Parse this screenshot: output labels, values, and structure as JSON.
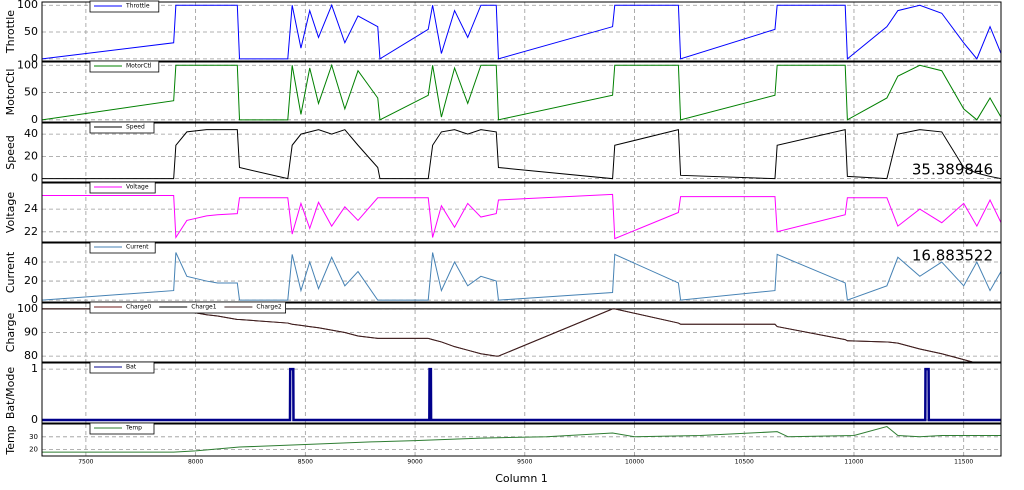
{
  "chart_data": [
    {
      "type": "line",
      "ylabel": "Throttle",
      "xlim": [
        7300,
        11670
      ],
      "xticks": [
        7500,
        8000,
        8500,
        9000,
        9500,
        10000,
        10500,
        11000,
        11500
      ],
      "ylim": [
        -4,
        106
      ],
      "yticks": [
        0,
        50,
        100
      ],
      "grid": true,
      "x": [
        7300,
        7900,
        7910,
        7960,
        8050,
        8100,
        8190,
        8200,
        8420,
        8440,
        8480,
        8520,
        8560,
        8620,
        8680,
        8740,
        8830,
        8840,
        9060,
        9080,
        9120,
        9180,
        9240,
        9300,
        9370,
        9380,
        9900,
        9910,
        10200,
        10210,
        10640,
        10650,
        10960,
        10970,
        11150,
        11200,
        11300,
        11400,
        11500,
        11560,
        11620,
        11670
      ],
      "series": [
        {
          "name": "Throttle",
          "color": "#0000ff",
          "values": [
            0,
            30,
            100,
            100,
            100,
            100,
            100,
            0,
            0,
            100,
            20,
            90,
            40,
            100,
            30,
            80,
            60,
            0,
            55,
            100,
            10,
            90,
            40,
            100,
            100,
            0,
            60,
            100,
            100,
            0,
            55,
            100,
            100,
            0,
            60,
            90,
            100,
            85,
            30,
            0,
            60,
            10
          ]
        }
      ]
    },
    {
      "type": "line",
      "ylabel": "MotorCtl",
      "xlim": [
        7300,
        11670
      ],
      "xticks": [
        7500,
        8000,
        8500,
        9000,
        9500,
        10000,
        10500,
        11000,
        11500
      ],
      "ylim": [
        -4,
        106
      ],
      "yticks": [
        0,
        50,
        100
      ],
      "grid": true,
      "x": [
        7300,
        7900,
        7910,
        7960,
        8050,
        8100,
        8190,
        8200,
        8420,
        8440,
        8480,
        8520,
        8560,
        8620,
        8680,
        8740,
        8830,
        8840,
        9060,
        9080,
        9120,
        9180,
        9240,
        9300,
        9370,
        9380,
        9900,
        9910,
        10200,
        10210,
        10640,
        10650,
        10960,
        10970,
        11150,
        11200,
        11300,
        11400,
        11500,
        11560,
        11620,
        11670
      ],
      "series": [
        {
          "name": "MotorCtl",
          "color": "#008000",
          "values": [
            0,
            35,
            100,
            100,
            100,
            100,
            100,
            0,
            0,
            100,
            10,
            95,
            30,
            100,
            20,
            90,
            40,
            0,
            45,
            100,
            5,
            95,
            30,
            100,
            100,
            0,
            45,
            100,
            100,
            0,
            45,
            100,
            100,
            0,
            40,
            80,
            100,
            90,
            20,
            0,
            40,
            5
          ]
        }
      ]
    },
    {
      "type": "line",
      "ylabel": "Speed",
      "xlim": [
        7300,
        11670
      ],
      "xticks": [
        7500,
        8000,
        8500,
        9000,
        9500,
        10000,
        10500,
        11000,
        11500
      ],
      "ylim": [
        -3,
        50
      ],
      "yticks": [
        0,
        20,
        40
      ],
      "grid": true,
      "annotation": "35.389846",
      "x": [
        7300,
        7900,
        7910,
        7960,
        8050,
        8100,
        8190,
        8200,
        8420,
        8440,
        8480,
        8520,
        8560,
        8620,
        8680,
        8740,
        8830,
        8840,
        9060,
        9080,
        9120,
        9180,
        9240,
        9300,
        9370,
        9380,
        9900,
        9910,
        10200,
        10210,
        10640,
        10650,
        10960,
        10970,
        11150,
        11200,
        11300,
        11400,
        11500,
        11560,
        11620,
        11670
      ],
      "series": [
        {
          "name": "Speed",
          "color": "#000000",
          "values": [
            0,
            0,
            30,
            42,
            44,
            44,
            44,
            10,
            0,
            30,
            40,
            42,
            44,
            40,
            44,
            30,
            10,
            0,
            0,
            30,
            42,
            44,
            40,
            44,
            42,
            10,
            0,
            30,
            44,
            3,
            0,
            30,
            44,
            2,
            0,
            40,
            44,
            42,
            10,
            5,
            2,
            0
          ]
        }
      ]
    },
    {
      "type": "line",
      "ylabel": "Voltage",
      "xlim": [
        7300,
        11670
      ],
      "xticks": [
        7500,
        8000,
        8500,
        9000,
        9500,
        10000,
        10500,
        11000,
        11500
      ],
      "ylim": [
        21.1,
        26.3
      ],
      "yticks": [
        22,
        24
      ],
      "grid": true,
      "x": [
        7300,
        7900,
        7910,
        7960,
        8050,
        8100,
        8190,
        8200,
        8420,
        8440,
        8480,
        8520,
        8560,
        8620,
        8680,
        8740,
        8830,
        8840,
        9060,
        9080,
        9120,
        9180,
        9240,
        9300,
        9370,
        9380,
        9900,
        9910,
        10200,
        10210,
        10640,
        10650,
        10960,
        10970,
        11150,
        11200,
        11300,
        11400,
        11500,
        11560,
        11620,
        11670
      ],
      "series": [
        {
          "name": "Voltage",
          "color": "#ff00ff",
          "values": [
            25.2,
            25.2,
            21.5,
            23.0,
            23.4,
            23.5,
            23.6,
            25.0,
            25.0,
            21.8,
            24.5,
            22.3,
            24.6,
            22.5,
            24.2,
            23.0,
            25.0,
            25.0,
            25.0,
            21.5,
            24.3,
            22.4,
            24.5,
            23.3,
            23.6,
            24.8,
            25.3,
            21.4,
            23.7,
            25.1,
            25.1,
            22.0,
            23.5,
            25.0,
            25.0,
            22.5,
            24.0,
            22.8,
            24.5,
            22.5,
            24.8,
            22.8
          ]
        }
      ]
    },
    {
      "type": "line",
      "ylabel": "Current",
      "xlim": [
        7300,
        11670
      ],
      "xticks": [
        7500,
        8000,
        8500,
        9000,
        9500,
        10000,
        10500,
        11000,
        11500
      ],
      "ylim": [
        -2,
        60
      ],
      "yticks": [
        0,
        20,
        40
      ],
      "grid": true,
      "annotation": "16.883522",
      "x": [
        7300,
        7900,
        7910,
        7960,
        8050,
        8100,
        8190,
        8200,
        8420,
        8440,
        8480,
        8520,
        8560,
        8620,
        8680,
        8740,
        8830,
        8840,
        9060,
        9080,
        9120,
        9180,
        9240,
        9300,
        9370,
        9380,
        9900,
        9910,
        10200,
        10210,
        10640,
        10650,
        10960,
        10970,
        11150,
        11200,
        11300,
        11400,
        11500,
        11560,
        11620,
        11670
      ],
      "series": [
        {
          "name": "Current",
          "color": "#4682b4",
          "values": [
            0,
            10,
            50,
            25,
            20,
            18,
            18,
            0,
            0,
            48,
            10,
            40,
            12,
            45,
            15,
            30,
            0,
            0,
            0,
            50,
            10,
            40,
            15,
            25,
            20,
            0,
            8,
            48,
            18,
            0,
            10,
            48,
            18,
            0,
            15,
            45,
            25,
            40,
            15,
            40,
            10,
            30
          ]
        }
      ]
    },
    {
      "type": "line",
      "ylabel": "Charge",
      "xlim": [
        7300,
        11670
      ],
      "xticks": [
        7500,
        8000,
        8500,
        9000,
        9500,
        10000,
        10500,
        11000,
        11500
      ],
      "ylim": [
        77.5,
        102.5
      ],
      "yticks": [
        80,
        90,
        100
      ],
      "grid": true,
      "x": [
        7300,
        7900,
        7910,
        7960,
        8050,
        8100,
        8190,
        8200,
        8420,
        8440,
        8480,
        8520,
        8560,
        8620,
        8680,
        8740,
        8830,
        8840,
        9060,
        9080,
        9120,
        9180,
        9240,
        9300,
        9370,
        9380,
        9900,
        9910,
        10200,
        10210,
        10640,
        10650,
        10960,
        10970,
        11150,
        11200,
        11300,
        11400,
        11500,
        11560,
        11620,
        11670
      ],
      "series": [
        {
          "name": "Charge0",
          "color": "#6b1a1a",
          "values": [
            100,
            100,
            99.5,
            99,
            97.5,
            97,
            95.5,
            95.5,
            94,
            93.5,
            93,
            92.5,
            92,
            91,
            90,
            88.5,
            87.5,
            87.5,
            87.5,
            87,
            86,
            84,
            82.5,
            81,
            80,
            80,
            100,
            100,
            94,
            93.5,
            93.5,
            92.5,
            87,
            86.5,
            86,
            85.5,
            83,
            81,
            78.5,
            77,
            76.5,
            76
          ]
        },
        {
          "name": "Charge1",
          "color": "#000000",
          "values": [
            100,
            100,
            100,
            100,
            100,
            100,
            100,
            100,
            100,
            100,
            100,
            100,
            100,
            100,
            100,
            100,
            100,
            100,
            100,
            100,
            100,
            100,
            100,
            100,
            100,
            100,
            100,
            100,
            100,
            100,
            100,
            100,
            100,
            100,
            100,
            100,
            100,
            100,
            100,
            100,
            100,
            100
          ]
        },
        {
          "name": "Charge2",
          "color": "#3a2020",
          "values": [
            100,
            100,
            99.5,
            99,
            97.5,
            97,
            95.5,
            95.5,
            94,
            93.5,
            93,
            92.5,
            92,
            91,
            90,
            88.5,
            87.5,
            87.5,
            87.5,
            87,
            86,
            84,
            82.5,
            81,
            80,
            80,
            100,
            100,
            94,
            93.5,
            93.5,
            92.5,
            87,
            86.5,
            86,
            85.5,
            83,
            81,
            78.5,
            77,
            76.5,
            76
          ]
        }
      ]
    },
    {
      "type": "line",
      "ylabel": "Bat/Mode",
      "xlim": [
        7300,
        11670
      ],
      "xticks": [
        7500,
        8000,
        8500,
        9000,
        9500,
        10000,
        10500,
        11000,
        11500
      ],
      "ylim": [
        -0.06,
        1.12
      ],
      "yticks": [
        0,
        1
      ],
      "grid": true,
      "x": [
        7300,
        8430,
        8431,
        8445,
        8446,
        9065,
        9066,
        9072,
        9073,
        11325,
        11326,
        11340,
        11341,
        11670
      ],
      "series": [
        {
          "name": "Bat",
          "color": "#00008b",
          "values": [
            0,
            0,
            1,
            1,
            0,
            0,
            1,
            1,
            0,
            0,
            1,
            1,
            0,
            0
          ]
        }
      ]
    },
    {
      "type": "line",
      "ylabel": "Temp",
      "xlabel": "Column 1",
      "xlim": [
        7300,
        11670
      ],
      "xticks": [
        7500,
        8000,
        8500,
        9000,
        9500,
        10000,
        10500,
        11000,
        11500
      ],
      "ylim": [
        15,
        40
      ],
      "yticks": [
        20,
        30
      ],
      "grid": true,
      "x": [
        7300,
        7900,
        8000,
        8200,
        8500,
        8800,
        9000,
        9300,
        9600,
        9900,
        10000,
        10300,
        10650,
        10700,
        11000,
        11150,
        11200,
        11300,
        11400,
        11670
      ],
      "series": [
        {
          "name": "Temp",
          "color": "#2e7d32",
          "values": [
            18,
            18,
            19,
            22,
            24,
            26,
            27,
            29,
            30,
            33,
            30,
            31,
            34,
            30,
            31,
            38,
            31,
            30,
            31,
            31
          ]
        }
      ]
    }
  ]
}
